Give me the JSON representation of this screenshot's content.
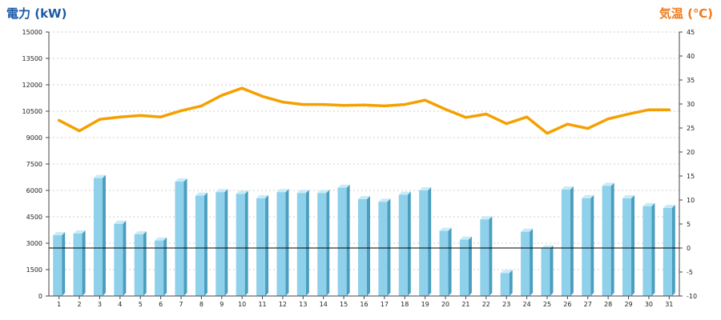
{
  "chart_data": {
    "type": "bar+line",
    "left_axis_title": "電力 (kW)",
    "right_axis_title": "気温 (℃)",
    "colors": {
      "left_title": "#1a5aa6",
      "right_title": "#f07a1a",
      "bar_front": "#8fd0ea",
      "bar_side": "#4a9ec0",
      "bar_top": "#c7ecf8",
      "line": "#f5a000",
      "grid": "#bdbdbd",
      "baseline": "#000000"
    },
    "categories": [
      "1",
      "2",
      "3",
      "4",
      "5",
      "6",
      "7",
      "8",
      "9",
      "10",
      "11",
      "12",
      "13",
      "14",
      "15",
      "16",
      "17",
      "18",
      "19",
      "20",
      "21",
      "22",
      "23",
      "24",
      "25",
      "26",
      "27",
      "28",
      "29",
      "30",
      "31"
    ],
    "ylim_left": [
      0,
      15000
    ],
    "yticks_left": [
      0,
      1500,
      3000,
      4500,
      6000,
      7500,
      9000,
      10500,
      12000,
      13500,
      15000
    ],
    "ylim_right": [
      -10,
      45
    ],
    "yticks_right": [
      -10,
      -5,
      0,
      5,
      10,
      15,
      20,
      25,
      30,
      35,
      40,
      45
    ],
    "series": [
      {
        "type": "bar",
        "axis": "left",
        "values": [
          3450,
          3550,
          6700,
          4100,
          3500,
          3150,
          6500,
          5700,
          5900,
          5800,
          5550,
          5900,
          5850,
          5850,
          6150,
          5500,
          5350,
          5750,
          6000,
          3700,
          3200,
          4350,
          1300,
          3650,
          2700,
          6050,
          5550,
          6250,
          5550,
          5100,
          5000
        ]
      },
      {
        "type": "line",
        "axis": "right",
        "values": [
          26.6,
          24.4,
          26.8,
          27.3,
          27.6,
          27.3,
          28.6,
          29.6,
          31.8,
          33.3,
          31.6,
          30.4,
          29.9,
          29.9,
          29.7,
          29.8,
          29.6,
          29.9,
          30.8,
          28.9,
          27.2,
          27.9,
          25.9,
          27.3,
          23.9,
          25.8,
          24.9,
          26.9,
          27.9,
          28.8,
          28.8
        ]
      }
    ],
    "grid": true,
    "zero_line_right_axis": true
  }
}
